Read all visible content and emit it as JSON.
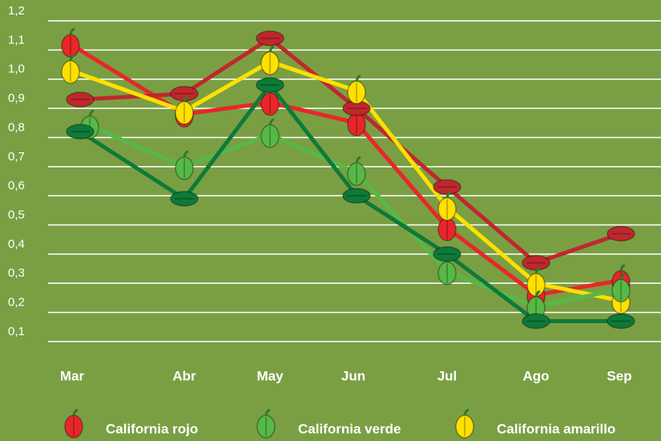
{
  "chart_data": {
    "type": "line",
    "categories": [
      "Mar",
      "Abr",
      "May",
      "Jun",
      "Jul",
      "Ago",
      "Sep"
    ],
    "series": [
      {
        "name": "California rojo",
        "color": "#e8262a",
        "marker": "upright",
        "values": [
          1.12,
          0.88,
          0.92,
          0.85,
          0.49,
          0.26,
          0.31
        ]
      },
      {
        "color": "#c0272d",
        "marker": "sideways",
        "values": [
          0.93,
          0.95,
          1.14,
          0.9,
          0.63,
          0.37,
          0.47
        ]
      },
      {
        "name": "California amarillo",
        "color": "#ffe000",
        "marker": "upright",
        "values": [
          1.03,
          0.89,
          1.06,
          0.96,
          0.56,
          0.3,
          0.24
        ]
      },
      {
        "name": "California verde",
        "color": "#56b947",
        "marker": "upright",
        "values": [
          0.84,
          0.7,
          0.81,
          0.68,
          0.34,
          0.22,
          0.28
        ]
      },
      {
        "color": "#0e7a3a",
        "marker": "sideways",
        "values": [
          0.82,
          0.59,
          0.98,
          0.6,
          0.4,
          0.17,
          0.17
        ]
      }
    ],
    "legend_order": [
      0,
      3,
      2
    ],
    "ylim": [
      0.1,
      1.2
    ],
    "yticks": [
      {
        "value": 0.1,
        "label": "0,1"
      },
      {
        "value": 0.2,
        "label": "0,2"
      },
      {
        "value": 0.3,
        "label": "0,3"
      },
      {
        "value": 0.4,
        "label": "0,4"
      },
      {
        "value": 0.5,
        "label": "0,5"
      },
      {
        "value": 0.6,
        "label": "0,6"
      },
      {
        "value": 0.7,
        "label": "0,7"
      },
      {
        "value": 0.8,
        "label": "0,8"
      },
      {
        "value": 0.9,
        "label": "0,9"
      },
      {
        "value": 1.0,
        "label": "1,0"
      },
      {
        "value": 1.1,
        "label": "1,1"
      },
      {
        "value": 1.2,
        "label": "1,2"
      }
    ],
    "grid": true
  }
}
